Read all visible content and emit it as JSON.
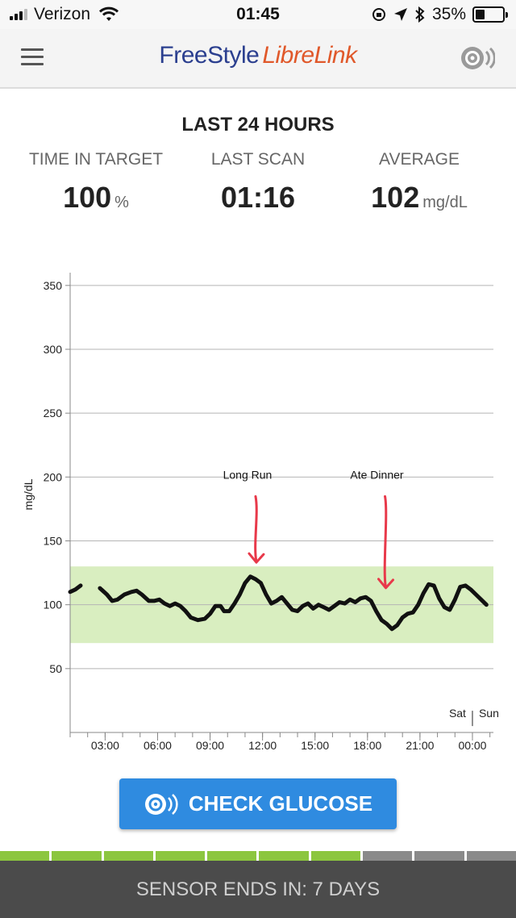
{
  "status_bar": {
    "carrier": "Verizon",
    "time": "01:45",
    "battery": "35%",
    "battery_level": 0.35
  },
  "header": {
    "logo_part1": "FreeStyle",
    "logo_part2": "LibreLink",
    "menu_icon": "hamburger-icon",
    "scan_icon": "sensor-scan-icon"
  },
  "summary": {
    "title": "LAST 24 HOURS",
    "stats": [
      {
        "label": "TIME IN TARGET",
        "value": "100",
        "unit": "%"
      },
      {
        "label": "LAST SCAN",
        "value": "01:16",
        "unit": ""
      },
      {
        "label": "AVERAGE",
        "value": "102",
        "unit": "mg/dL"
      }
    ]
  },
  "chart_data": {
    "type": "line",
    "ylabel": "mg/dL",
    "ylim": [
      0,
      360
    ],
    "xlim": [
      1.0,
      25.2
    ],
    "y_ticks": [
      50,
      100,
      150,
      200,
      250,
      300,
      350
    ],
    "x_ticks": [
      {
        "x": 3,
        "label": "03:00"
      },
      {
        "x": 6,
        "label": "06:00"
      },
      {
        "x": 9,
        "label": "09:00"
      },
      {
        "x": 12,
        "label": "12:00"
      },
      {
        "x": 15,
        "label": "15:00"
      },
      {
        "x": 18,
        "label": "18:00"
      },
      {
        "x": 21,
        "label": "21:00"
      },
      {
        "x": 24,
        "label": "00:00"
      }
    ],
    "target_range": [
      70,
      130
    ],
    "target_color": "#d9eec0",
    "line_color": "#111111",
    "grid": true,
    "day_labels": [
      "Sat",
      "Sun"
    ],
    "day_boundary_x": 24,
    "series": [
      {
        "segments": [
          [
            [
              1.0,
              110
            ],
            [
              1.3,
              112
            ],
            [
              1.6,
              115
            ]
          ],
          [
            [
              2.7,
              113
            ],
            [
              3.1,
              108
            ],
            [
              3.4,
              103
            ],
            [
              3.7,
              104
            ],
            [
              4.1,
              108
            ],
            [
              4.5,
              110
            ],
            [
              4.8,
              111
            ],
            [
              5.1,
              108
            ],
            [
              5.5,
              103
            ],
            [
              5.8,
              103
            ],
            [
              6.1,
              104
            ],
            [
              6.4,
              101
            ],
            [
              6.7,
              99
            ],
            [
              7.0,
              101
            ],
            [
              7.3,
              99
            ],
            [
              7.6,
              95
            ],
            [
              7.9,
              90
            ],
            [
              8.3,
              88
            ],
            [
              8.7,
              89
            ],
            [
              9.0,
              93
            ],
            [
              9.3,
              99
            ],
            [
              9.6,
              99
            ],
            [
              9.8,
              95
            ],
            [
              10.1,
              95
            ],
            [
              10.4,
              101
            ],
            [
              10.7,
              108
            ],
            [
              11.0,
              117
            ],
            [
              11.3,
              122
            ],
            [
              11.6,
              120
            ],
            [
              11.9,
              117
            ],
            [
              12.2,
              108
            ],
            [
              12.5,
              101
            ],
            [
              12.8,
              103
            ],
            [
              13.1,
              106
            ],
            [
              13.4,
              101
            ],
            [
              13.7,
              96
            ],
            [
              14.0,
              95
            ],
            [
              14.3,
              99
            ],
            [
              14.6,
              101
            ],
            [
              14.9,
              97
            ],
            [
              15.2,
              100
            ],
            [
              15.5,
              98
            ],
            [
              15.8,
              96
            ],
            [
              16.1,
              99
            ],
            [
              16.4,
              102
            ],
            [
              16.7,
              101
            ],
            [
              17.0,
              104
            ],
            [
              17.3,
              102
            ],
            [
              17.6,
              105
            ],
            [
              17.9,
              106
            ],
            [
              18.2,
              103
            ],
            [
              18.5,
              95
            ],
            [
              18.8,
              88
            ],
            [
              19.1,
              85
            ],
            [
              19.4,
              81
            ],
            [
              19.7,
              84
            ],
            [
              20.0,
              90
            ],
            [
              20.3,
              93
            ],
            [
              20.6,
              94
            ],
            [
              20.9,
              100
            ],
            [
              21.2,
              109
            ],
            [
              21.5,
              116
            ],
            [
              21.8,
              115
            ],
            [
              22.1,
              105
            ],
            [
              22.4,
              98
            ],
            [
              22.7,
              96
            ],
            [
              23.0,
              104
            ],
            [
              23.3,
              114
            ],
            [
              23.6,
              115
            ],
            [
              23.9,
              112
            ],
            [
              24.2,
              108
            ],
            [
              24.5,
              104
            ],
            [
              24.8,
              100
            ],
            [
              25.1,
              101
            ],
            [
              25.4,
              103
            ],
            [
              25.7,
              104
            ],
            [
              26.0,
              104
            ]
          ]
        ]
      }
    ],
    "annotations": [
      {
        "text": "Long Run",
        "x": 11.6,
        "arrow_to_y": 130
      },
      {
        "text": "Ate Dinner",
        "x": 19.0,
        "arrow_to_y": 110
      }
    ],
    "annotation_arrow_color": "#e8394a"
  },
  "actions": {
    "check_glucose": "CHECK GLUCOSE"
  },
  "sensor": {
    "segments_total": 10,
    "segments_filled": 7,
    "filled_color": "#8cc63f",
    "empty_color": "#8a8a8a",
    "ends_text": "SENSOR ENDS IN: 7 DAYS"
  }
}
